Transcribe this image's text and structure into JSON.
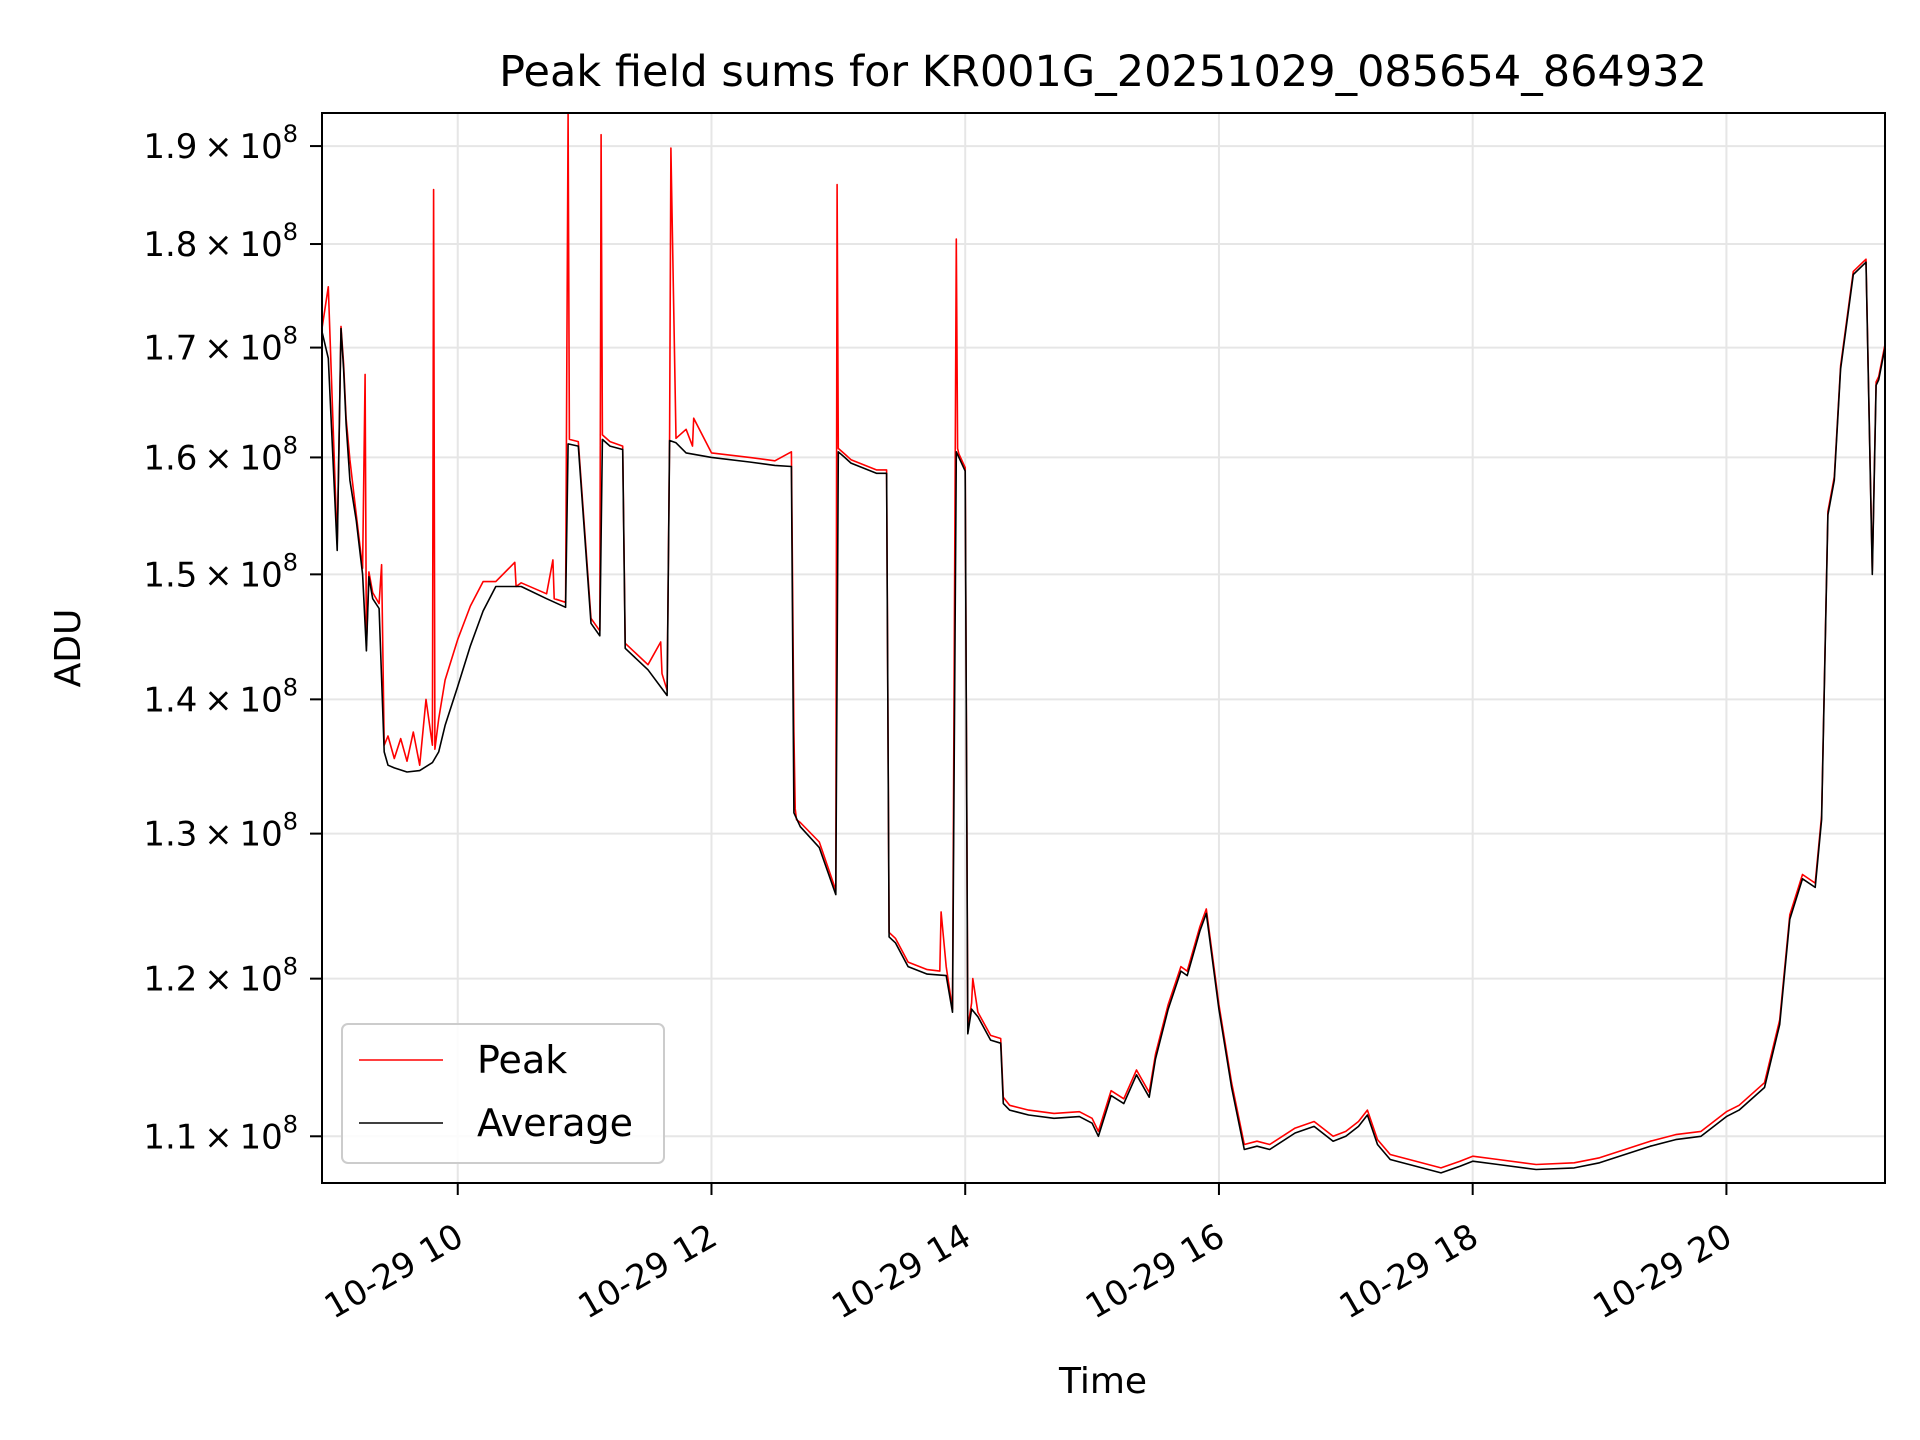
{
  "chart_data": {
    "type": "line",
    "title": "Peak field sums for KR001G_20251029_085654_864932",
    "xlabel": "Time",
    "ylabel": "ADU",
    "yscale": "log",
    "xlim": [
      8.93,
      21.25
    ],
    "ylim": [
      107200000,
      193500000
    ],
    "grid": true,
    "legend_position": "lower-left",
    "x_ticks": [
      {
        "value": 10,
        "label": "10-29 10"
      },
      {
        "value": 12,
        "label": "10-29 12"
      },
      {
        "value": 14,
        "label": "10-29 14"
      },
      {
        "value": 16,
        "label": "10-29 16"
      },
      {
        "value": 18,
        "label": "10-29 18"
      },
      {
        "value": 20,
        "label": "10-29 20"
      }
    ],
    "y_ticks": [
      {
        "value": 110000000,
        "mantissa": "1.1",
        "times": "×",
        "base": "10",
        "exp": "8"
      },
      {
        "value": 120000000,
        "mantissa": "1.2",
        "times": "×",
        "base": "10",
        "exp": "8"
      },
      {
        "value": 130000000,
        "mantissa": "1.3",
        "times": "×",
        "base": "10",
        "exp": "8"
      },
      {
        "value": 140000000,
        "mantissa": "1.4",
        "times": "×",
        "base": "10",
        "exp": "8"
      },
      {
        "value": 150000000,
        "mantissa": "1.5",
        "times": "×",
        "base": "10",
        "exp": "8"
      },
      {
        "value": 160000000,
        "mantissa": "1.6",
        "times": "×",
        "base": "10",
        "exp": "8"
      },
      {
        "value": 170000000,
        "mantissa": "1.7",
        "times": "×",
        "base": "10",
        "exp": "8"
      },
      {
        "value": 180000000,
        "mantissa": "1.8",
        "times": "×",
        "base": "10",
        "exp": "8"
      },
      {
        "value": 190000000,
        "mantissa": "1.9",
        "times": "×",
        "base": "10",
        "exp": "8"
      }
    ],
    "series": [
      {
        "name": "Average",
        "color": "#000000",
        "x": [
          8.93,
          8.98,
          9.05,
          9.08,
          9.1,
          9.12,
          9.15,
          9.2,
          9.25,
          9.28,
          9.3,
          9.33,
          9.38,
          9.42,
          9.45,
          9.5,
          9.6,
          9.7,
          9.8,
          9.85,
          9.9,
          10.0,
          10.1,
          10.2,
          10.3,
          10.5,
          10.7,
          10.85,
          10.87,
          10.95,
          11.05,
          11.12,
          11.14,
          11.2,
          11.3,
          11.32,
          11.5,
          11.65,
          11.67,
          11.72,
          11.8,
          12.0,
          12.3,
          12.5,
          12.63,
          12.65,
          12.7,
          12.85,
          12.98,
          13.0,
          13.05,
          13.1,
          13.3,
          13.38,
          13.4,
          13.45,
          13.55,
          13.7,
          13.85,
          13.9,
          13.93,
          13.95,
          14.0,
          14.02,
          14.05,
          14.1,
          14.2,
          14.28,
          14.3,
          14.35,
          14.5,
          14.7,
          14.9,
          15.0,
          15.05,
          15.15,
          15.25,
          15.35,
          15.45,
          15.5,
          15.6,
          15.7,
          15.75,
          15.85,
          15.9,
          16.0,
          16.1,
          16.2,
          16.3,
          16.4,
          16.6,
          16.75,
          16.9,
          17.0,
          17.1,
          17.17,
          17.25,
          17.35,
          17.5,
          17.75,
          17.9,
          18.0,
          18.2,
          18.5,
          18.8,
          19.0,
          19.2,
          19.4,
          19.6,
          19.8,
          20.0,
          20.1,
          20.3,
          20.42,
          20.5,
          20.6,
          20.7,
          20.75,
          20.8,
          20.85,
          20.9,
          21.0,
          21.1,
          21.15,
          21.18,
          21.2,
          21.25
        ],
        "values": [
          171500000,
          169000000,
          152000000,
          171800000,
          168000000,
          163000000,
          158000000,
          154500000,
          150000000,
          143800000,
          149800000,
          148000000,
          147200000,
          136000000,
          135000000,
          134800000,
          134500000,
          134600000,
          135200000,
          136000000,
          138000000,
          141000000,
          144200000,
          147000000,
          149000000,
          149000000,
          148000000,
          147300000,
          161200000,
          161000000,
          146000000,
          145000000,
          161600000,
          161000000,
          160700000,
          144000000,
          142300000,
          140300000,
          161500000,
          161300000,
          160400000,
          160000000,
          159600000,
          159300000,
          159200000,
          131500000,
          130500000,
          129000000,
          125700000,
          160500000,
          160000000,
          159500000,
          158600000,
          158600000,
          122800000,
          122400000,
          120800000,
          120300000,
          120200000,
          117800000,
          160500000,
          160000000,
          158800000,
          116400000,
          118000000,
          117500000,
          116000000,
          115800000,
          112000000,
          111600000,
          111300000,
          111100000,
          111200000,
          110800000,
          110000000,
          112500000,
          112000000,
          113800000,
          112400000,
          114800000,
          118000000,
          120500000,
          120200000,
          123200000,
          124400000,
          118000000,
          113000000,
          109200000,
          109400000,
          109200000,
          110200000,
          110600000,
          109700000,
          110000000,
          110600000,
          111300000,
          109500000,
          108600000,
          108300000,
          107800000,
          108200000,
          108500000,
          108300000,
          108000000,
          108100000,
          108400000,
          108900000,
          109400000,
          109800000,
          110000000,
          111200000,
          111600000,
          113000000,
          117000000,
          124000000,
          126800000,
          126200000,
          131000000,
          155000000,
          158000000,
          168000000,
          177000000,
          178200000,
          150000000,
          166500000,
          167000000,
          170000000
        ]
      },
      {
        "name": "Peak",
        "color": "#ff0000",
        "x": [
          8.93,
          8.98,
          9.05,
          9.08,
          9.1,
          9.12,
          9.15,
          9.2,
          9.25,
          9.27,
          9.28,
          9.3,
          9.33,
          9.38,
          9.4,
          9.42,
          9.45,
          9.5,
          9.55,
          9.6,
          9.65,
          9.7,
          9.75,
          9.8,
          9.81,
          9.82,
          9.85,
          9.9,
          10.0,
          10.1,
          10.2,
          10.3,
          10.45,
          10.46,
          10.5,
          10.7,
          10.75,
          10.76,
          10.85,
          10.87,
          10.88,
          10.95,
          11.05,
          11.12,
          11.13,
          11.14,
          11.2,
          11.3,
          11.32,
          11.5,
          11.6,
          11.61,
          11.65,
          11.67,
          11.68,
          11.72,
          11.8,
          11.85,
          11.86,
          12.0,
          12.3,
          12.5,
          12.63,
          12.65,
          12.66,
          12.67,
          12.7,
          12.85,
          12.98,
          12.99,
          13.0,
          13.05,
          13.1,
          13.3,
          13.38,
          13.4,
          13.45,
          13.55,
          13.7,
          13.8,
          13.81,
          13.85,
          13.9,
          13.93,
          13.94,
          13.95,
          14.0,
          14.02,
          14.05,
          14.06,
          14.1,
          14.2,
          14.28,
          14.3,
          14.35,
          14.5,
          14.7,
          14.9,
          15.0,
          15.05,
          15.15,
          15.25,
          15.35,
          15.45,
          15.5,
          15.6,
          15.7,
          15.75,
          15.85,
          15.9,
          16.0,
          16.1,
          16.2,
          16.3,
          16.4,
          16.6,
          16.75,
          16.9,
          17.0,
          17.1,
          17.17,
          17.25,
          17.35,
          17.5,
          17.75,
          17.9,
          18.0,
          18.2,
          18.5,
          18.8,
          19.0,
          19.2,
          19.4,
          19.6,
          19.8,
          20.0,
          20.1,
          20.3,
          20.42,
          20.5,
          20.6,
          20.7,
          20.75,
          20.8,
          20.85,
          20.9,
          21.0,
          21.1,
          21.15,
          21.18,
          21.2,
          21.25
        ],
        "values": [
          171800000,
          175800000,
          152500000,
          172000000,
          168500000,
          163500000,
          159800000,
          155000000,
          150500000,
          167500000,
          144200000,
          150200000,
          148500000,
          147600000,
          150800000,
          136500000,
          137200000,
          135500000,
          137000000,
          135300000,
          137500000,
          135000000,
          140000000,
          136500000,
          185500000,
          136200000,
          138500000,
          141500000,
          144700000,
          147400000,
          149400000,
          149400000,
          151000000,
          149000000,
          149300000,
          148400000,
          151200000,
          148000000,
          147700000,
          193500000,
          161600000,
          161400000,
          146400000,
          145400000,
          191200000,
          162000000,
          161400000,
          161000000,
          144400000,
          142700000,
          144500000,
          142000000,
          140700000,
          161900000,
          189800000,
          161700000,
          162500000,
          161000000,
          163500000,
          160400000,
          160000000,
          159700000,
          160500000,
          137500000,
          131800000,
          131000000,
          130800000,
          129400000,
          126000000,
          186000000,
          160800000,
          160300000,
          159800000,
          158900000,
          158900000,
          123100000,
          122700000,
          121100000,
          120600000,
          120500000,
          124500000,
          120800000,
          118000000,
          180500000,
          160800000,
          160300000,
          159100000,
          116800000,
          118400000,
          120000000,
          117800000,
          116300000,
          116100000,
          112400000,
          111900000,
          111600000,
          111400000,
          111500000,
          111100000,
          110300000,
          112800000,
          112300000,
          114100000,
          112700000,
          115100000,
          118300000,
          120800000,
          120500000,
          123500000,
          124700000,
          118300000,
          113300000,
          109500000,
          109700000,
          109500000,
          110500000,
          110900000,
          110000000,
          110300000,
          110900000,
          111600000,
          109800000,
          108900000,
          108600000,
          108100000,
          108500000,
          108800000,
          108600000,
          108300000,
          108400000,
          108700000,
          109200000,
          109700000,
          110100000,
          110300000,
          111500000,
          111900000,
          113300000,
          117300000,
          124300000,
          127100000,
          126500000,
          131300000,
          155300000,
          158300000,
          168300000,
          177300000,
          178500000,
          150300000,
          166800000,
          167300000,
          170300000
        ]
      }
    ]
  },
  "legend": {
    "items": [
      {
        "label": "Peak",
        "color": "#ff0000"
      },
      {
        "label": "Average",
        "color": "#000000"
      }
    ]
  }
}
